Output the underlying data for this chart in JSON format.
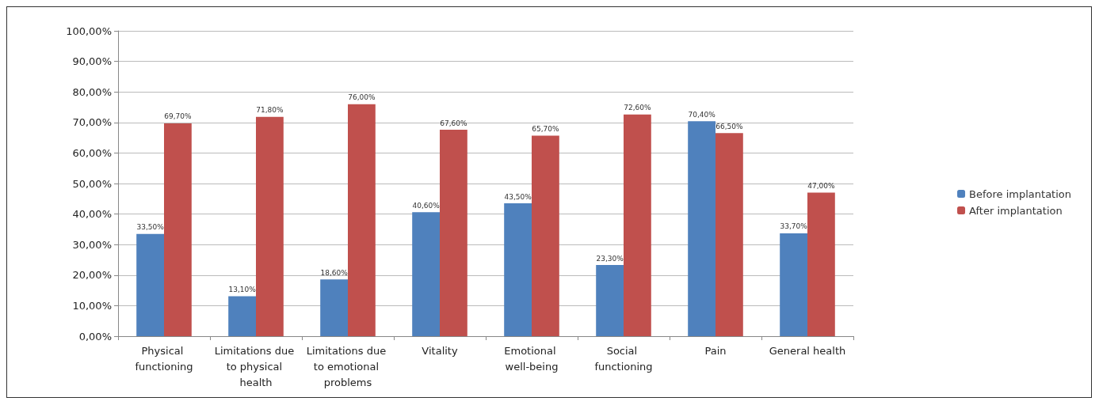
{
  "chart_data": {
    "type": "bar",
    "categories": [
      "Physical functioning",
      "Limitations due to physical health",
      "Limitations due to emotional problems",
      "Vitality",
      "Emotional well-being",
      "Social functioning",
      "Pain",
      "General health"
    ],
    "series": [
      {
        "name": "Before implantation",
        "color": "#4f81bd",
        "values": [
          33.5,
          13.1,
          18.6,
          40.6,
          43.5,
          23.3,
          70.4,
          33.7
        ],
        "value_labels": [
          "33,50%",
          "13,10%",
          "18,60%",
          "40,60%",
          "43,50%",
          "23,30%",
          "70,40%",
          "33,70%"
        ]
      },
      {
        "name": "After implantation",
        "color": "#c0504d",
        "values": [
          69.7,
          71.8,
          76.0,
          67.6,
          65.7,
          72.6,
          66.5,
          47.0
        ],
        "value_labels": [
          "69,70%",
          "71,80%",
          "76,00%",
          "67,60%",
          "65,70%",
          "72,60%",
          "66,50%",
          "47,00%"
        ]
      }
    ],
    "ylim": [
      0,
      100
    ],
    "yticks": [
      {
        "value": 0,
        "label": "0,00%"
      },
      {
        "value": 10,
        "label": "10,00%"
      },
      {
        "value": 20,
        "label": "20,00%"
      },
      {
        "value": 30,
        "label": "30,00%"
      },
      {
        "value": 40,
        "label": "40,00%"
      },
      {
        "value": 50,
        "label": "50,00%"
      },
      {
        "value": 60,
        "label": "60,00%"
      },
      {
        "value": 70,
        "label": "70,00%"
      },
      {
        "value": 80,
        "label": "80,00%"
      },
      {
        "value": 90,
        "label": "90,00%"
      },
      {
        "value": 100,
        "label": "100,00%"
      }
    ],
    "grid": "y",
    "legend": "right"
  }
}
